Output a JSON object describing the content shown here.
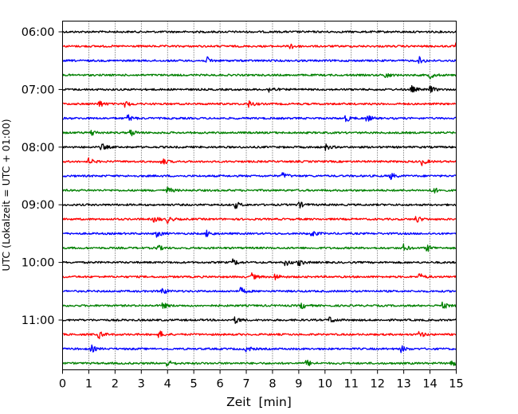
{
  "chart_data": {
    "type": "line",
    "title": "",
    "xlabel": "Zeit  [min]",
    "ylabel": "UTC (Lokalzeit = UTC + 01:00)",
    "xlim": [
      0,
      15
    ],
    "x_ticks": [
      0,
      1,
      2,
      3,
      4,
      5,
      6,
      7,
      8,
      9,
      10,
      11,
      12,
      13,
      14,
      15
    ],
    "y_tick_labels": [
      "06:00",
      "07:00",
      "08:00",
      "09:00",
      "10:00",
      "11:00"
    ],
    "grid": "vertical dotted lines at each minute",
    "traces": [
      {
        "start": "06:00",
        "color": "#000000",
        "events_min": []
      },
      {
        "start": "06:15",
        "color": "#ff0000",
        "events_min": [
          8.7,
          15.0
        ]
      },
      {
        "start": "06:30",
        "color": "#0000ff",
        "events_min": [
          5.5,
          13.6
        ]
      },
      {
        "start": "06:45",
        "color": "#008000",
        "events_min": [
          12.3,
          14.0
        ]
      },
      {
        "start": "07:00",
        "color": "#000000",
        "events_min": [
          7.9,
          13.3,
          14.0
        ]
      },
      {
        "start": "07:15",
        "color": "#ff0000",
        "events_min": [
          1.4,
          2.4,
          7.1
        ]
      },
      {
        "start": "07:30",
        "color": "#0000ff",
        "events_min": [
          2.5,
          10.8,
          11.6
        ]
      },
      {
        "start": "07:45",
        "color": "#008000",
        "events_min": [
          1.1,
          2.6
        ]
      },
      {
        "start": "08:00",
        "color": "#000000",
        "events_min": [
          1.5,
          10.0
        ]
      },
      {
        "start": "08:15",
        "color": "#ff0000",
        "events_min": [
          1.0,
          3.8,
          13.7
        ]
      },
      {
        "start": "08:30",
        "color": "#0000ff",
        "events_min": [
          8.4,
          12.5
        ]
      },
      {
        "start": "08:45",
        "color": "#008000",
        "events_min": [
          4.0,
          14.1
        ]
      },
      {
        "start": "09:00",
        "color": "#000000",
        "events_min": [
          6.6,
          9.0
        ]
      },
      {
        "start": "09:15",
        "color": "#ff0000",
        "events_min": [
          3.5,
          4.0,
          13.5
        ]
      },
      {
        "start": "09:30",
        "color": "#0000ff",
        "events_min": [
          3.6,
          5.5,
          9.5
        ]
      },
      {
        "start": "09:45",
        "color": "#008000",
        "events_min": [
          3.6,
          13.0,
          13.9
        ]
      },
      {
        "start": "10:00",
        "color": "#000000",
        "events_min": [
          6.5,
          8.5,
          9.0
        ]
      },
      {
        "start": "10:15",
        "color": "#ff0000",
        "events_min": [
          7.2,
          8.1,
          13.6
        ]
      },
      {
        "start": "10:30",
        "color": "#0000ff",
        "events_min": [
          3.8,
          6.8
        ]
      },
      {
        "start": "10:45",
        "color": "#008000",
        "events_min": [
          3.8,
          9.1,
          14.5
        ]
      },
      {
        "start": "11:00",
        "color": "#000000",
        "events_min": [
          6.6,
          10.2
        ]
      },
      {
        "start": "11:15",
        "color": "#ff0000",
        "events_min": [
          1.4,
          3.7,
          13.6
        ]
      },
      {
        "start": "11:30",
        "color": "#0000ff",
        "events_min": [
          1.1,
          7.0,
          12.9
        ]
      },
      {
        "start": "11:45",
        "color": "#008000",
        "events_min": [
          4.0,
          9.3,
          14.8
        ]
      }
    ]
  }
}
